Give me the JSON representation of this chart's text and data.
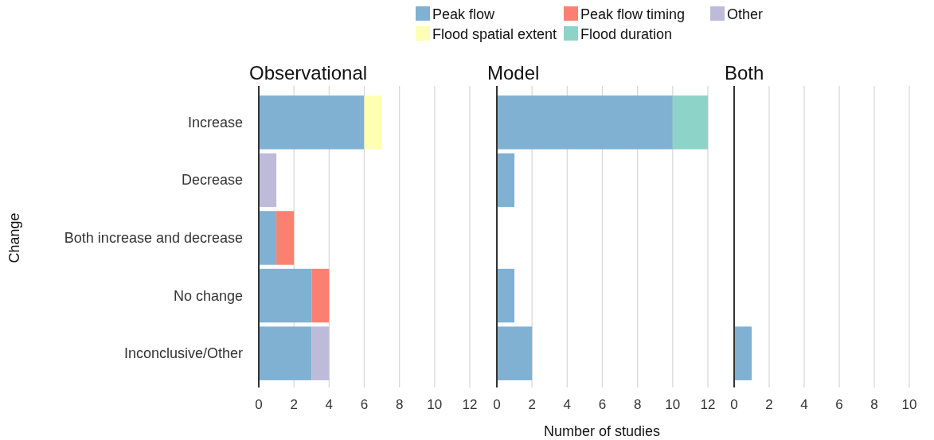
{
  "chart_data": [
    {
      "type": "bar",
      "title": "Observational",
      "orientation": "horizontal",
      "stacked": true,
      "ylabel": "Change",
      "categories": [
        "Increase",
        "Decrease",
        "Both increase and decrease",
        "No change",
        "Inconclusive/Other"
      ],
      "xlim": [
        0,
        12
      ],
      "xticks": [
        0,
        2,
        4,
        6,
        8,
        10,
        12
      ],
      "grid": "x",
      "legend": "top",
      "series": [
        {
          "name": "Peak flow",
          "color": "#80b1d3",
          "values": [
            6,
            null,
            1,
            3,
            3
          ]
        },
        {
          "name": "Peak flow timing",
          "color": "#fb8072",
          "values": [
            null,
            null,
            1,
            1,
            null
          ]
        },
        {
          "name": "Other",
          "color": "#bebada",
          "values": [
            null,
            1,
            null,
            null,
            1
          ]
        },
        {
          "name": "Flood spatial extent",
          "color": "#ffffb3",
          "values": [
            1,
            null,
            null,
            null,
            null
          ]
        },
        {
          "name": "Flood duration",
          "color": "#8dd3c7",
          "values": [
            null,
            null,
            null,
            null,
            null
          ]
        }
      ]
    },
    {
      "type": "bar",
      "title": "Model",
      "orientation": "horizontal",
      "stacked": true,
      "xlabel": "Number of studies",
      "categories": [
        null,
        null,
        null,
        null,
        null
      ],
      "tick_labels": "x",
      "xlim": [
        0,
        12
      ],
      "xticks": [
        0,
        2,
        4,
        6,
        8,
        10,
        12
      ],
      "grid": "x",
      "series": [
        {
          "color": "#80b1d3",
          "values": [
            10,
            1,
            null,
            1,
            2
          ]
        },
        {
          "color": "#8dd3c7",
          "values": [
            2,
            null,
            null,
            null,
            null
          ]
        }
      ]
    },
    {
      "type": "bar",
      "title": "Both",
      "orientation": "horizontal",
      "stacked": true,
      "categories": [
        null,
        null,
        null,
        null,
        null
      ],
      "tick_labels": "x",
      "xlim": [
        0,
        10
      ],
      "xticks": [
        0,
        2,
        4,
        6,
        8,
        10
      ],
      "grid": "x",
      "series": [
        {
          "color": "#80b1d3",
          "values": [
            null,
            null,
            null,
            null,
            1
          ]
        }
      ]
    }
  ]
}
